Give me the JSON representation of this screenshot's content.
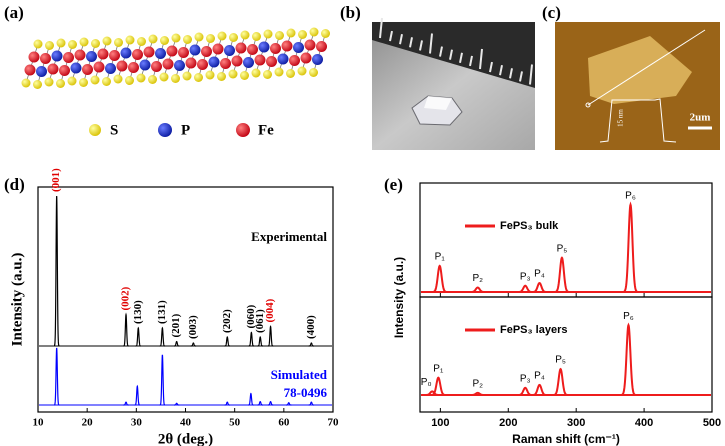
{
  "figure": {
    "panel_labels": [
      "(a)",
      "(b)",
      "(c)",
      "(d)",
      "(e)"
    ],
    "atom_legend": [
      "S",
      "P",
      "Fe"
    ],
    "afm_height": "15 nm",
    "afm_scale": "2um"
  },
  "chart_data": [
    {
      "type": "line",
      "xlabel": "2θ (deg.)",
      "ylabel": "Intensity (a.u.)",
      "xlim": [
        10,
        70
      ],
      "xticks": [
        10,
        20,
        30,
        40,
        50,
        60,
        70
      ],
      "series": [
        {
          "name": "Experimental",
          "color": "#000000",
          "x": [
            13.8,
            27.9,
            30.4,
            35.3,
            38.2,
            41.6,
            48.5,
            53.4,
            55.2,
            57.3,
            65.6
          ],
          "values": [
            100,
            21,
            12,
            12,
            3,
            2,
            6,
            9,
            6,
            13,
            2
          ],
          "peak_labels": [
            "(001)",
            "(002)",
            "(130)",
            "(131)",
            "(201)",
            "(003)",
            "(202)",
            "(060)",
            "(061)",
            "(004)",
            "(400)"
          ],
          "label_colors": [
            "#e00000",
            "#e00000",
            "#000000",
            "#000000",
            "#000000",
            "#000000",
            "#000000",
            "#000000",
            "#000000",
            "#e00000",
            "#000000"
          ]
        },
        {
          "name": "Simulated",
          "card": "78-0496",
          "color": "#0000ff",
          "x": [
            13.8,
            27.9,
            30.2,
            35.3,
            38.2,
            48.5,
            53.3,
            55.2,
            57.3,
            61,
            65.6
          ],
          "values": [
            100,
            5,
            33,
            88,
            3,
            5,
            20,
            6,
            6,
            4,
            5
          ]
        }
      ]
    },
    {
      "type": "line",
      "xlabel": "Raman shift (cm⁻¹)",
      "ylabel": "Intensity (a.u.)",
      "xlim": [
        70,
        500
      ],
      "xticks": [
        100,
        200,
        300,
        400,
        500
      ],
      "series": [
        {
          "name": "FePS₃ bulk",
          "color": "#ee1c1c",
          "x": [
            99,
            155,
            225,
            246,
            279,
            380
          ],
          "values": [
            29,
            5,
            7,
            10,
            38,
            97
          ],
          "peak_labels": [
            "P₁",
            "P₂",
            "P₃",
            "P₄",
            "P₅",
            "P₆"
          ]
        },
        {
          "name": "FePS₃ layers",
          "color": "#ee1c1c",
          "x": [
            88,
            97,
            155,
            225,
            246,
            277,
            377
          ],
          "values": [
            5,
            24,
            3,
            10,
            14,
            36,
            97
          ],
          "peak_labels": [
            "P₀",
            "P₁",
            "P₂",
            "P₃",
            "P₄",
            "P₅",
            "P₆"
          ]
        }
      ]
    }
  ]
}
